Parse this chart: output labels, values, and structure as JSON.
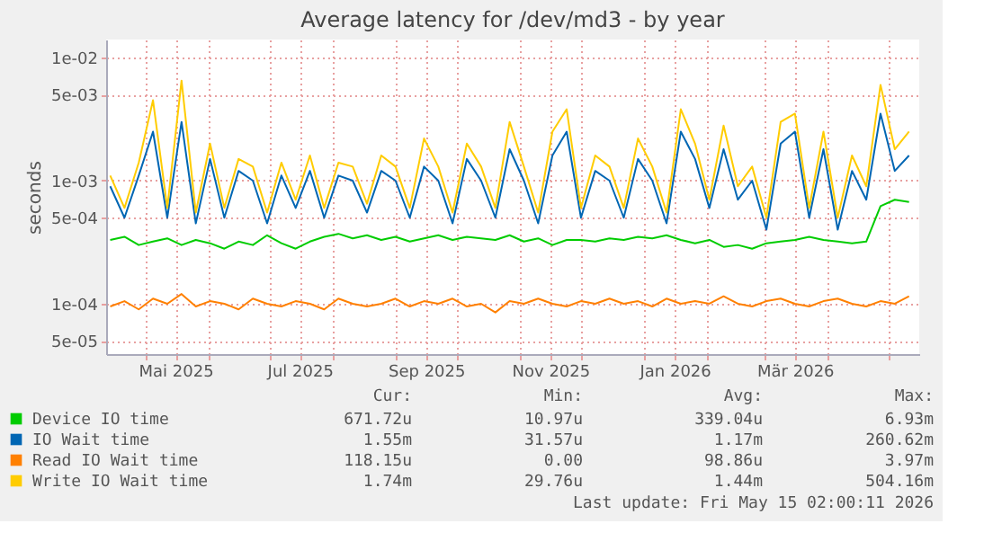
{
  "chart_data": {
    "type": "line",
    "title": "Average latency for /dev/md3 - by year",
    "ylabel": "seconds",
    "log": "y",
    "grid": true,
    "legend": "bottom",
    "line_style": "solid",
    "marker": "none",
    "xlim": [
      "2025-04-12",
      "2026-05-16"
    ],
    "xticks": [
      {
        "value": "2025-05-01",
        "label": null
      },
      {
        "value": "2025-05-16",
        "label": "Mai 2025"
      },
      {
        "value": "2025-06-01",
        "label": null
      },
      {
        "value": "2025-07-01",
        "label": null
      },
      {
        "value": "2025-07-16",
        "label": "Jul 2025"
      },
      {
        "value": "2025-08-01",
        "label": null
      },
      {
        "value": "2025-09-01",
        "label": null
      },
      {
        "value": "2025-09-16",
        "label": "Sep 2025"
      },
      {
        "value": "2025-10-01",
        "label": null
      },
      {
        "value": "2025-11-01",
        "label": null
      },
      {
        "value": "2025-11-16",
        "label": "Nov 2025"
      },
      {
        "value": "2025-12-01",
        "label": null
      },
      {
        "value": "2026-01-01",
        "label": null
      },
      {
        "value": "2026-01-16",
        "label": "Jan 2026"
      },
      {
        "value": "2026-02-01",
        "label": null
      },
      {
        "value": "2026-03-01",
        "label": null
      },
      {
        "value": "2026-03-16",
        "label": "Mär 2026"
      },
      {
        "value": "2026-04-01",
        "label": null
      },
      {
        "value": "2026-05-01",
        "label": null
      }
    ],
    "ylim": [
      3.9e-05,
      0.014
    ],
    "yticks": [
      {
        "value": 5e-05,
        "label": "5e-05"
      },
      {
        "value": 0.0001,
        "label": "1e-04"
      },
      {
        "value": 0.0005,
        "label": "5e-04"
      },
      {
        "value": 0.001,
        "label": "1e-03"
      },
      {
        "value": 0.005,
        "label": "5e-03"
      },
      {
        "value": 0.01,
        "label": "1e-02"
      }
    ],
    "x": [
      "2025-04-14",
      "2025-04-21",
      "2025-04-28",
      "2025-05-05",
      "2025-05-12",
      "2025-05-19",
      "2025-05-26",
      "2025-06-02",
      "2025-06-09",
      "2025-06-16",
      "2025-06-23",
      "2025-06-30",
      "2025-07-07",
      "2025-07-14",
      "2025-07-21",
      "2025-07-28",
      "2025-08-04",
      "2025-08-11",
      "2025-08-18",
      "2025-08-25",
      "2025-09-01",
      "2025-09-08",
      "2025-09-15",
      "2025-09-22",
      "2025-09-29",
      "2025-10-06",
      "2025-10-13",
      "2025-10-20",
      "2025-10-27",
      "2025-11-03",
      "2025-11-10",
      "2025-11-17",
      "2025-11-24",
      "2025-12-01",
      "2025-12-08",
      "2025-12-15",
      "2025-12-22",
      "2025-12-29",
      "2026-01-05",
      "2026-01-12",
      "2026-01-19",
      "2026-01-26",
      "2026-02-02",
      "2026-02-09",
      "2026-02-16",
      "2026-02-23",
      "2026-03-02",
      "2026-03-09",
      "2026-03-16",
      "2026-03-23",
      "2026-03-30",
      "2026-04-06",
      "2026-04-13",
      "2026-04-20",
      "2026-04-27",
      "2026-05-04",
      "2026-05-11"
    ],
    "series": [
      {
        "name": "Device IO time",
        "color": "#00cc00",
        "values": [
          0.00033,
          0.00035,
          0.0003,
          0.00032,
          0.00034,
          0.0003,
          0.00033,
          0.00031,
          0.00028,
          0.00032,
          0.0003,
          0.00036,
          0.00031,
          0.00028,
          0.00032,
          0.00035,
          0.00037,
          0.00034,
          0.00036,
          0.00033,
          0.00035,
          0.00032,
          0.00034,
          0.00036,
          0.00033,
          0.00035,
          0.00034,
          0.00033,
          0.00036,
          0.00032,
          0.00034,
          0.0003,
          0.00033,
          0.00033,
          0.00032,
          0.00034,
          0.00033,
          0.00035,
          0.00034,
          0.00036,
          0.00033,
          0.00031,
          0.00033,
          0.00029,
          0.0003,
          0.00028,
          0.00031,
          0.00032,
          0.00033,
          0.00035,
          0.00033,
          0.00032,
          0.00031,
          0.00032,
          0.00062,
          0.0007,
          0.00067
        ]
      },
      {
        "name": "IO Wait time",
        "color": "#0066b3",
        "values": [
          0.0009,
          0.0005,
          0.0011,
          0.0025,
          0.0005,
          0.003,
          0.00045,
          0.0015,
          0.0005,
          0.0012,
          0.001,
          0.00045,
          0.0011,
          0.0006,
          0.0012,
          0.0005,
          0.0011,
          0.001,
          0.00055,
          0.0012,
          0.001,
          0.0005,
          0.0013,
          0.001,
          0.00045,
          0.0015,
          0.001,
          0.0005,
          0.0018,
          0.001,
          0.00045,
          0.0016,
          0.0025,
          0.0005,
          0.0012,
          0.001,
          0.0005,
          0.0015,
          0.001,
          0.00045,
          0.0025,
          0.0015,
          0.0006,
          0.0018,
          0.0007,
          0.001,
          0.0004,
          0.002,
          0.0025,
          0.0005,
          0.0018,
          0.0004,
          0.0012,
          0.0007,
          0.0035,
          0.0012,
          0.0016
        ]
      },
      {
        "name": "Read IO Wait time",
        "color": "#ff8000",
        "values": [
          9.5e-05,
          0.000105,
          9e-05,
          0.00011,
          0.0001,
          0.00012,
          9.5e-05,
          0.000105,
          0.0001,
          9e-05,
          0.00011,
          0.0001,
          9.5e-05,
          0.000105,
          0.0001,
          9e-05,
          0.00011,
          0.0001,
          9.5e-05,
          0.0001,
          0.00011,
          9.5e-05,
          0.000105,
          0.0001,
          0.00011,
          9.5e-05,
          0.0001,
          8.5e-05,
          0.000105,
          0.0001,
          0.00011,
          0.0001,
          9.5e-05,
          0.000105,
          0.0001,
          0.00011,
          0.0001,
          0.000105,
          9.5e-05,
          0.00011,
          0.0001,
          0.000105,
          0.0001,
          0.000115,
          0.0001,
          9.5e-05,
          0.000105,
          0.00011,
          0.0001,
          9.5e-05,
          0.000105,
          0.00011,
          0.0001,
          9.5e-05,
          0.000105,
          0.0001,
          0.000115
        ]
      },
      {
        "name": "Write IO Wait time",
        "color": "#ffcc00",
        "values": [
          0.0011,
          0.0006,
          0.0014,
          0.0045,
          0.0006,
          0.0065,
          0.00055,
          0.002,
          0.0006,
          0.0015,
          0.0013,
          0.00055,
          0.0014,
          0.0007,
          0.0016,
          0.0006,
          0.0014,
          0.0013,
          0.00065,
          0.0016,
          0.0013,
          0.0006,
          0.0022,
          0.0013,
          0.00055,
          0.002,
          0.0013,
          0.0006,
          0.003,
          0.0013,
          0.00055,
          0.0025,
          0.0038,
          0.0006,
          0.0016,
          0.0013,
          0.0006,
          0.0022,
          0.0013,
          0.00055,
          0.0038,
          0.002,
          0.0007,
          0.0028,
          0.0009,
          0.0013,
          0.0005,
          0.003,
          0.0035,
          0.0006,
          0.0025,
          0.0005,
          0.0016,
          0.0009,
          0.006,
          0.0018,
          0.0025
        ]
      }
    ],
    "annotations": [
      "Cur:",
      "Min:",
      "Avg:",
      "Max:",
      "671.72u",
      "10.97u",
      "339.04u",
      "6.93m",
      "1.55m",
      "31.57u",
      "1.17m",
      "260.62m",
      "118.15u",
      "0.00",
      "98.86u",
      "3.97m",
      "1.74m",
      "29.76u",
      "1.44m",
      "504.16m",
      "Last update: Fri May 15 02:00:11 2026"
    ]
  }
}
